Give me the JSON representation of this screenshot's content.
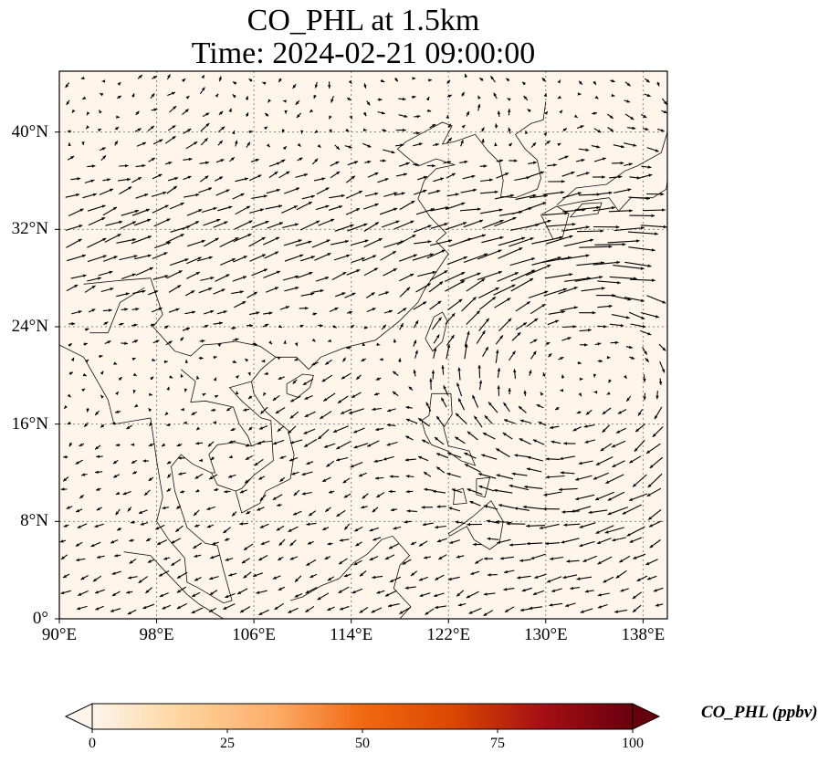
{
  "title": {
    "line1": "CO_PHL at 1.5km",
    "line2": "Time: 2024-02-21 09:00:00"
  },
  "map": {
    "lon_range": [
      90,
      140
    ],
    "lat_range": [
      0,
      45
    ],
    "lat_ticks": [
      {
        "value": 40,
        "label": "40°N"
      },
      {
        "value": 32,
        "label": "32°N"
      },
      {
        "value": 24,
        "label": "24°N"
      },
      {
        "value": 16,
        "label": "16°N"
      },
      {
        "value": 8,
        "label": "8°N"
      },
      {
        "value": 0,
        "label": "0°"
      }
    ],
    "lon_ticks": [
      {
        "value": 90,
        "label": "90°E"
      },
      {
        "value": 98,
        "label": "98°E"
      },
      {
        "value": 106,
        "label": "106°E"
      },
      {
        "value": 114,
        "label": "114°E"
      },
      {
        "value": 122,
        "label": "122°E"
      },
      {
        "value": 130,
        "label": "130°E"
      },
      {
        "value": 138,
        "label": "138°E"
      }
    ],
    "gridlines": true,
    "background_color": "#fff5eb",
    "wind_vectors": true
  },
  "colorbar": {
    "label": "CO_PHL (ppbv)",
    "min": 0,
    "max": 100,
    "ticks": [
      {
        "value": 0,
        "label": "0"
      },
      {
        "value": 25,
        "label": "25"
      },
      {
        "value": 50,
        "label": "50"
      },
      {
        "value": 75,
        "label": "75"
      },
      {
        "value": 100,
        "label": "100"
      }
    ],
    "colormap": [
      "#fff5eb",
      "#fdd49e",
      "#fdae6b",
      "#f16913",
      "#d94801",
      "#a50f15",
      "#67000d"
    ],
    "extend": "both"
  }
}
